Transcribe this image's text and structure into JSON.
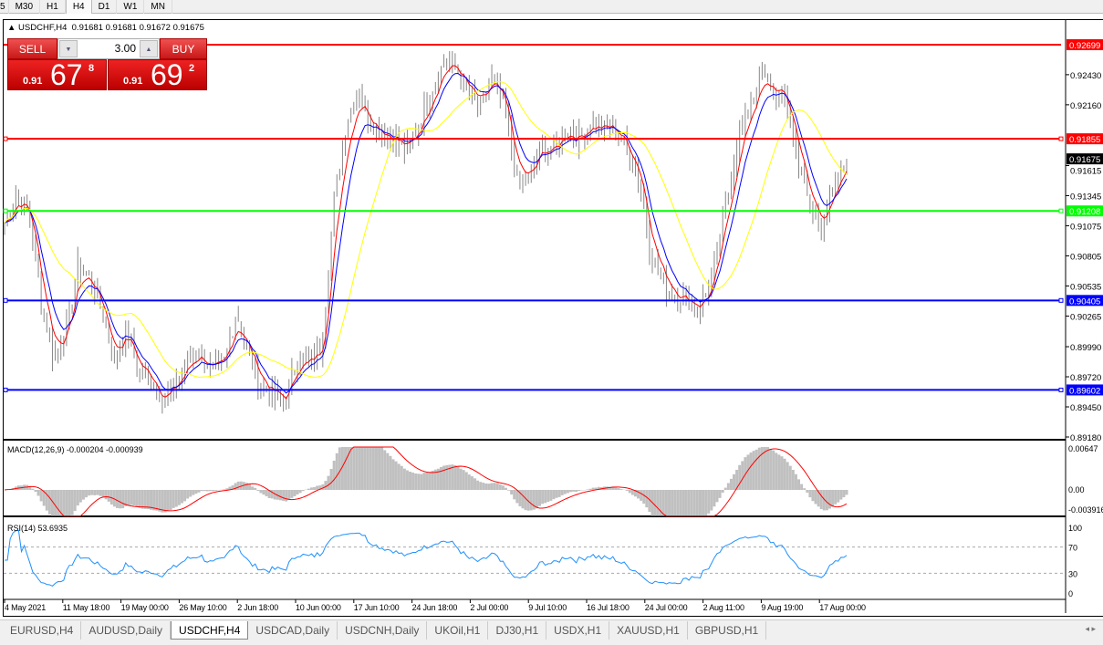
{
  "timeframes": [
    "5",
    "M30",
    "H1",
    "H4",
    "D1",
    "W1",
    "MN"
  ],
  "active_timeframe": "H4",
  "header": {
    "symbol": "USDCHF,H4",
    "ohlc": "0.91681 0.91681 0.91672 0.91675"
  },
  "trade_panel": {
    "sell_label": "SELL",
    "buy_label": "BUY",
    "lot": "3.00",
    "sell": {
      "big_prefix": "0.91",
      "big": "67",
      "pip": "8"
    },
    "buy": {
      "big_prefix": "0.91",
      "big": "69",
      "pip": "2"
    }
  },
  "price_axis": {
    "ticks": [
      "0.92430",
      "0.92160",
      "0.91615",
      "0.91345",
      "0.91075",
      "0.90805",
      "0.90535",
      "0.90265",
      "0.89990",
      "0.89720",
      "0.89450",
      "0.89180"
    ],
    "tick_values": [
      0.9243,
      0.9216,
      0.91615,
      0.91345,
      0.91075,
      0.90805,
      0.90535,
      0.90265,
      0.8999,
      0.8972,
      0.8945,
      0.8918
    ],
    "range": [
      0.8918,
      0.92699
    ],
    "current_price": {
      "label": "0.91675",
      "value": 0.91675,
      "color": "#000000"
    }
  },
  "hlines": [
    {
      "label": "0.92699",
      "value": 0.92699,
      "color": "#ff0000"
    },
    {
      "label": "0.91855",
      "value": 0.91855,
      "color": "#ff0000"
    },
    {
      "label": "0.91208",
      "value": 0.91208,
      "color": "#00ff00"
    },
    {
      "label": "0.90405",
      "value": 0.90405,
      "color": "#0000ff"
    },
    {
      "label": "0.89602",
      "value": 0.89602,
      "color": "#0000ff"
    }
  ],
  "macd": {
    "label": "MACD(12,26,9) -0.000204 -0.000939",
    "ticks": [
      "0.00647",
      "0.00",
      "-0.003916"
    ],
    "range": [
      -0.003916,
      0.00647
    ],
    "hist_color": "#c0c0c0",
    "signal_color": "#ff0000"
  },
  "rsi": {
    "label": "RSI(14) 53.6935",
    "ticks": [
      "100",
      "70",
      "30",
      "0"
    ],
    "levels": [
      70,
      30
    ],
    "color": "#1e90ff"
  },
  "time_axis": [
    "4 May 2021",
    "11 May 18:00",
    "19 May 00:00",
    "26 May 10:00",
    "2 Jun 18:00",
    "10 Jun 00:00",
    "17 Jun 10:00",
    "24 Jun 18:00",
    "2 Jul 00:00",
    "9 Jul 10:00",
    "16 Jul 18:00",
    "24 Jul 00:00",
    "2 Aug 11:00",
    "9 Aug 19:00",
    "17 Aug 00:00"
  ],
  "chart_data": {
    "type": "ohlc",
    "symbol": "USDCHF",
    "timeframe": "H4",
    "closes": [
      0.911,
      0.9135,
      0.912,
      0.904,
      0.899,
      0.901,
      0.907,
      0.906,
      0.903,
      0.8985,
      0.9015,
      0.8975,
      0.897,
      0.895,
      0.8965,
      0.8985,
      0.8995,
      0.8975,
      0.8985,
      0.903,
      0.899,
      0.8965,
      0.8955,
      0.895,
      0.899,
      0.8985,
      0.9,
      0.913,
      0.92,
      0.923,
      0.92,
      0.919,
      0.9185,
      0.9175,
      0.92,
      0.923,
      0.9255,
      0.925,
      0.9225,
      0.9215,
      0.924,
      0.921,
      0.9145,
      0.915,
      0.918,
      0.9175,
      0.9195,
      0.9185,
      0.92,
      0.9195,
      0.9195,
      0.9175,
      0.915,
      0.908,
      0.9055,
      0.9045,
      0.904,
      0.9035,
      0.906,
      0.912,
      0.918,
      0.9215,
      0.924,
      0.923,
      0.922,
      0.917,
      0.912,
      0.911,
      0.914,
      0.91675
    ],
    "moving_averages": [
      {
        "color": "#ff0000"
      },
      {
        "color": "#0000ff"
      },
      {
        "color": "#ffff00"
      }
    ]
  },
  "tabs": [
    "EURUSD,H4",
    "AUDUSD,Daily",
    "USDCHF,H4",
    "USDCAD,Daily",
    "USDCNH,Daily",
    "UKOil,H1",
    "DJ30,H1",
    "USDX,H1",
    "XAUUSD,H1",
    "GBPUSD,H1"
  ],
  "active_tab": "USDCHF,H4",
  "scroll_arrows": "◂ ▸"
}
